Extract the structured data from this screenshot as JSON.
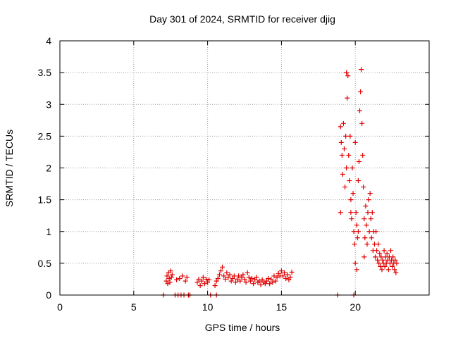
{
  "chart_data": {
    "type": "scatter",
    "title": "Day 301 of 2024, SRMTID for receiver djig",
    "xlabel": "GPS time / hours",
    "ylabel": "SRMTID / TECUs",
    "xlim": [
      0,
      25
    ],
    "ylim": [
      0,
      4
    ],
    "xticks": [
      0,
      5,
      10,
      15,
      20
    ],
    "yticks": [
      0,
      0.5,
      1,
      1.5,
      2,
      2.5,
      3,
      3.5,
      4
    ],
    "grid": true,
    "marker": "+",
    "color": "#e00000",
    "series": [
      {
        "name": "SRMTID",
        "points": [
          [
            7.2,
            0.22
          ],
          [
            7.25,
            0.3
          ],
          [
            7.3,
            0.18
          ],
          [
            7.35,
            0.35
          ],
          [
            7.4,
            0.26
          ],
          [
            7.45,
            0.2
          ],
          [
            7.5,
            0.38
          ],
          [
            7.55,
            0.28
          ],
          [
            7.6,
            0.32
          ],
          [
            7.9,
            0.24
          ],
          [
            8.1,
            0.26
          ],
          [
            8.3,
            0.3
          ],
          [
            8.5,
            0.22
          ],
          [
            8.6,
            0.28
          ],
          [
            9.3,
            0.2
          ],
          [
            9.4,
            0.25
          ],
          [
            9.5,
            0.15
          ],
          [
            9.6,
            0.22
          ],
          [
            9.7,
            0.28
          ],
          [
            9.8,
            0.18
          ],
          [
            9.9,
            0.25
          ],
          [
            10.0,
            0.2
          ],
          [
            10.1,
            0.24
          ],
          [
            10.5,
            0.15
          ],
          [
            10.6,
            0.22
          ],
          [
            10.7,
            0.26
          ],
          [
            10.8,
            0.32
          ],
          [
            10.9,
            0.38
          ],
          [
            11.0,
            0.44
          ],
          [
            11.1,
            0.3
          ],
          [
            11.2,
            0.25
          ],
          [
            11.3,
            0.35
          ],
          [
            11.4,
            0.28
          ],
          [
            11.5,
            0.32
          ],
          [
            11.6,
            0.22
          ],
          [
            11.7,
            0.26
          ],
          [
            11.8,
            0.3
          ],
          [
            11.9,
            0.2
          ],
          [
            12.0,
            0.25
          ],
          [
            12.1,
            0.3
          ],
          [
            12.2,
            0.22
          ],
          [
            12.3,
            0.28
          ],
          [
            12.4,
            0.32
          ],
          [
            12.5,
            0.25
          ],
          [
            12.6,
            0.2
          ],
          [
            12.7,
            0.35
          ],
          [
            12.8,
            0.28
          ],
          [
            12.9,
            0.22
          ],
          [
            13.0,
            0.26
          ],
          [
            13.1,
            0.18
          ],
          [
            13.2,
            0.24
          ],
          [
            13.3,
            0.28
          ],
          [
            13.4,
            0.2
          ],
          [
            13.5,
            0.22
          ],
          [
            13.6,
            0.16
          ],
          [
            13.7,
            0.24
          ],
          [
            13.8,
            0.2
          ],
          [
            13.9,
            0.18
          ],
          [
            14.0,
            0.22
          ],
          [
            14.1,
            0.26
          ],
          [
            14.2,
            0.18
          ],
          [
            14.3,
            0.25
          ],
          [
            14.4,
            0.2
          ],
          [
            14.5,
            0.3
          ],
          [
            14.6,
            0.22
          ],
          [
            14.7,
            0.28
          ],
          [
            14.8,
            0.34
          ],
          [
            14.9,
            0.3
          ],
          [
            15.0,
            0.38
          ],
          [
            15.1,
            0.3
          ],
          [
            15.2,
            0.35
          ],
          [
            15.3,
            0.26
          ],
          [
            15.4,
            0.32
          ],
          [
            15.5,
            0.24
          ],
          [
            15.6,
            0.28
          ],
          [
            15.7,
            0.36
          ],
          [
            7.0,
            0
          ],
          [
            7.8,
            0
          ],
          [
            8.0,
            0
          ],
          [
            8.2,
            0
          ],
          [
            8.4,
            0
          ],
          [
            8.7,
            0
          ],
          [
            8.8,
            0
          ],
          [
            10.2,
            0
          ],
          [
            10.6,
            0
          ],
          [
            18.8,
            0
          ],
          [
            19.9,
            0
          ],
          [
            19.0,
            2.65
          ],
          [
            19.05,
            2.4
          ],
          [
            19.1,
            2.2
          ],
          [
            19.15,
            1.9
          ],
          [
            19.2,
            2.7
          ],
          [
            19.25,
            2.3
          ],
          [
            19.3,
            1.7
          ],
          [
            19.35,
            2.5
          ],
          [
            19.4,
            3.5
          ],
          [
            19.45,
            3.1
          ],
          [
            19.5,
            3.45
          ],
          [
            19.55,
            2.2
          ],
          [
            19.6,
            1.8
          ],
          [
            19.65,
            2.5
          ],
          [
            19.7,
            1.5
          ],
          [
            19.75,
            1.2
          ],
          [
            19.8,
            2.0
          ],
          [
            19.85,
            1.6
          ],
          [
            19.9,
            1.0
          ],
          [
            19.95,
            0.8
          ],
          [
            20.0,
            2.4
          ],
          [
            20.05,
            1.3
          ],
          [
            20.1,
            1.1
          ],
          [
            20.15,
            0.9
          ],
          [
            20.2,
            1.8
          ],
          [
            20.25,
            2.1
          ],
          [
            20.3,
            2.9
          ],
          [
            20.35,
            3.2
          ],
          [
            20.4,
            3.55
          ],
          [
            20.45,
            2.7
          ],
          [
            20.5,
            2.2
          ],
          [
            20.55,
            1.7
          ],
          [
            20.6,
            1.2
          ],
          [
            20.65,
            0.9
          ],
          [
            20.7,
            1.4
          ],
          [
            20.75,
            1.1
          ],
          [
            20.8,
            0.8
          ],
          [
            20.85,
            1.3
          ],
          [
            20.9,
            1.5
          ],
          [
            20.95,
            1.0
          ],
          [
            21.0,
            1.6
          ],
          [
            21.05,
            1.2
          ],
          [
            21.1,
            0.9
          ],
          [
            21.15,
            1.3
          ],
          [
            21.2,
            0.7
          ],
          [
            21.25,
            1.0
          ],
          [
            21.3,
            0.8
          ],
          [
            21.35,
            0.6
          ],
          [
            21.4,
            1.0
          ],
          [
            21.45,
            0.7
          ],
          [
            21.5,
            0.55
          ],
          [
            21.55,
            0.8
          ],
          [
            21.6,
            0.5
          ],
          [
            21.65,
            0.65
          ],
          [
            21.7,
            0.45
          ],
          [
            21.75,
            0.6
          ],
          [
            21.8,
            0.4
          ],
          [
            21.85,
            0.55
          ],
          [
            21.9,
            0.5
          ],
          [
            21.95,
            0.7
          ],
          [
            22.0,
            0.45
          ],
          [
            22.05,
            0.6
          ],
          [
            22.1,
            0.5
          ],
          [
            22.15,
            0.65
          ],
          [
            22.2,
            0.55
          ],
          [
            22.25,
            0.4
          ],
          [
            22.3,
            0.6
          ],
          [
            22.35,
            0.5
          ],
          [
            22.4,
            0.7
          ],
          [
            22.45,
            0.55
          ],
          [
            22.5,
            0.45
          ],
          [
            22.55,
            0.6
          ],
          [
            22.6,
            0.5
          ],
          [
            22.65,
            0.4
          ],
          [
            22.7,
            0.55
          ],
          [
            22.75,
            0.35
          ],
          [
            22.8,
            0.5
          ],
          [
            19.0,
            1.3
          ],
          [
            19.4,
            2.0
          ],
          [
            19.7,
            1.3
          ],
          [
            20.0,
            0.5
          ],
          [
            20.2,
            1.0
          ],
          [
            20.6,
            0.6
          ],
          [
            20.1,
            0.4
          ]
        ]
      }
    ]
  }
}
